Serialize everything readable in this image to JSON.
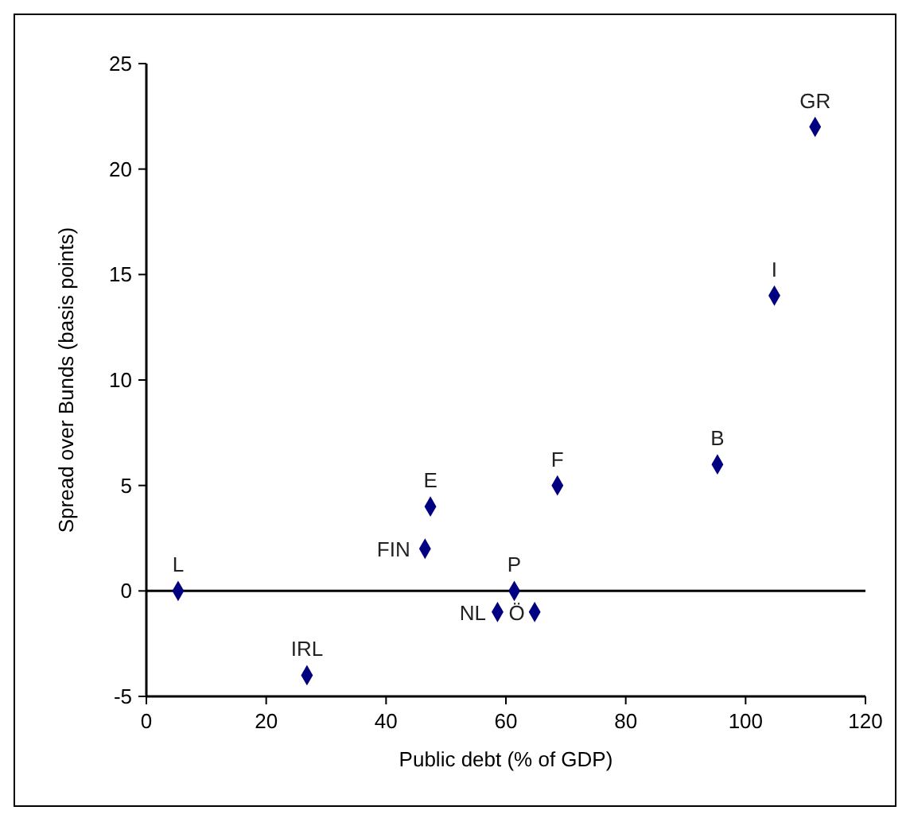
{
  "chart_data": {
    "type": "scatter",
    "xlabel": "Public debt (% of GDP)",
    "ylabel": "Spread over Bunds (basis points)",
    "x": [
      5.3,
      26.8,
      46.5,
      47.4,
      58.6,
      61.4,
      64.8,
      68.6,
      95.3,
      104.8,
      111.6
    ],
    "values": [
      0,
      -4,
      2,
      4,
      -1,
      0,
      -1,
      5,
      6,
      14,
      22
    ],
    "color": "#000080",
    "marker": "diamond",
    "xlim": [
      0,
      120
    ],
    "xticks": [
      0,
      20,
      40,
      60,
      80,
      100,
      120
    ],
    "ylim": [
      -5,
      25
    ],
    "yticks": [
      -5,
      0,
      5,
      10,
      15,
      20,
      25
    ],
    "ref_lines": [
      {
        "axis": "y",
        "value": 0,
        "color": "#000000"
      }
    ],
    "annotations": [
      {
        "text": "L",
        "x": 5.3,
        "y": 0
      },
      {
        "text": "IRL",
        "x": 26.8,
        "y": -4
      },
      {
        "text": "FIN",
        "x": 46.5,
        "y": 2
      },
      {
        "text": "E",
        "x": 47.4,
        "y": 4
      },
      {
        "text": "NL",
        "x": 58.6,
        "y": -1
      },
      {
        "text": "P",
        "x": 61.4,
        "y": 0
      },
      {
        "text": "Ö",
        "x": 64.8,
        "y": -1
      },
      {
        "text": "F",
        "x": 68.6,
        "y": 5
      },
      {
        "text": "B",
        "x": 95.3,
        "y": 6
      },
      {
        "text": "I",
        "x": 104.8,
        "y": 14
      },
      {
        "text": "GR",
        "x": 111.6,
        "y": 22
      }
    ]
  }
}
